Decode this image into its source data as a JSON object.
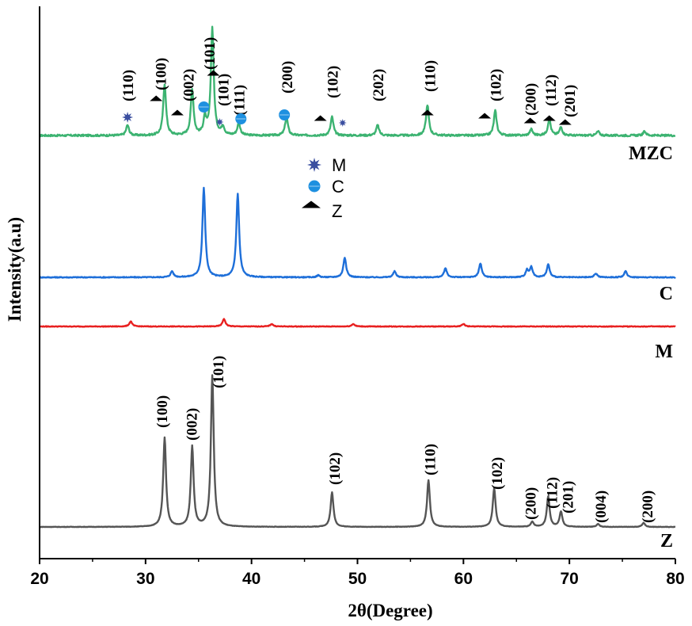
{
  "chart_data": {
    "type": "line",
    "xlabel": "2θ(Degree)",
    "ylabel": "Intensity(a.u)",
    "xlim": [
      20,
      80
    ],
    "x_ticks": [
      "20",
      "30",
      "40",
      "50",
      "60",
      "70",
      "80"
    ],
    "grid": false,
    "legend": {
      "placement": "center",
      "entries": [
        {
          "symbol": "star",
          "label": "M",
          "color": "#3B4FA0"
        },
        {
          "symbol": "circle",
          "label": "C",
          "color": "#1E90E0"
        },
        {
          "symbol": "triangle",
          "label": "Z",
          "color": "#000000"
        }
      ]
    },
    "series": [
      {
        "name": "MZC",
        "color": "#3CB371",
        "baseline": 0.0,
        "noise": 0.9,
        "peaks": [
          [
            28.3,
            5
          ],
          [
            31.8,
            25
          ],
          [
            34.4,
            22
          ],
          [
            35.6,
            8
          ],
          [
            36.3,
            52
          ],
          [
            37.3,
            4
          ],
          [
            38.8,
            6
          ],
          [
            43.3,
            9
          ],
          [
            47.6,
            9
          ],
          [
            51.9,
            5
          ],
          [
            56.6,
            15
          ],
          [
            63.0,
            12
          ],
          [
            66.4,
            3
          ],
          [
            68.1,
            8
          ],
          [
            69.2,
            4
          ],
          [
            72.7,
            2
          ],
          [
            77.1,
            2
          ]
        ]
      },
      {
        "name": "C",
        "color": "#1E6FD9",
        "baseline": 0.0,
        "noise": 0.9,
        "peaks": [
          [
            32.5,
            6
          ],
          [
            35.5,
            90
          ],
          [
            38.7,
            84
          ],
          [
            46.3,
            2
          ],
          [
            48.8,
            20
          ],
          [
            53.5,
            6
          ],
          [
            58.3,
            9
          ],
          [
            61.6,
            14
          ],
          [
            66.0,
            7
          ],
          [
            66.4,
            10
          ],
          [
            68.0,
            13
          ],
          [
            72.5,
            4
          ],
          [
            75.3,
            6
          ]
        ]
      },
      {
        "name": "M",
        "color": "#E82020",
        "baseline": 0.0,
        "noise": 0.5,
        "peaks": [
          [
            28.6,
            4
          ],
          [
            37.4,
            6
          ],
          [
            41.9,
            2
          ],
          [
            49.6,
            2
          ],
          [
            60.0,
            2
          ]
        ]
      },
      {
        "name": "Z",
        "color": "#555555",
        "baseline": 0.0,
        "noise": 0.4,
        "peaks": [
          [
            31.8,
            88
          ],
          [
            34.4,
            79
          ],
          [
            36.3,
            149
          ],
          [
            47.6,
            34
          ],
          [
            56.7,
            46
          ],
          [
            62.9,
            38
          ],
          [
            66.5,
            5
          ],
          [
            68.0,
            30
          ],
          [
            69.2,
            15
          ],
          [
            72.7,
            3
          ],
          [
            77.0,
            4
          ]
        ]
      }
    ],
    "series_labels": [
      "MZC",
      "C",
      "M",
      "Z"
    ],
    "peak_labels": {
      "MZC": [
        {
          "text": "(110)",
          "x": 28.3
        },
        {
          "text": "(100)",
          "x": 31.4
        },
        {
          "text": "(002)",
          "x": 34.0
        },
        {
          "text": "(101)",
          "x": 36.0
        },
        {
          "text": "(101)",
          "x": 37.3
        },
        {
          "text": "(111)",
          "x": 38.8
        },
        {
          "text": "(200)",
          "x": 43.3
        },
        {
          "text": "(102)",
          "x": 47.6
        },
        {
          "text": "(202)",
          "x": 51.9
        },
        {
          "text": "(110)",
          "x": 56.8
        },
        {
          "text": "(102)",
          "x": 63.0
        },
        {
          "text": "(200)",
          "x": 66.3
        },
        {
          "text": "(112)",
          "x": 68.2
        },
        {
          "text": "(201)",
          "x": 70.0
        }
      ],
      "Z": [
        {
          "text": "(100)",
          "x": 31.5
        },
        {
          "text": "(002)",
          "x": 34.3
        },
        {
          "text": "(101)",
          "x": 36.8
        },
        {
          "text": "(102)",
          "x": 47.8
        },
        {
          "text": "(110)",
          "x": 56.8
        },
        {
          "text": "(102)",
          "x": 63.1
        },
        {
          "text": "(200)",
          "x": 66.3
        },
        {
          "text": "(112)",
          "x": 68.3
        },
        {
          "text": "(201)",
          "x": 69.8
        },
        {
          "text": "(004)",
          "x": 72.9
        },
        {
          "text": "(200)",
          "x": 77.3
        }
      ]
    },
    "phase_markers": [
      {
        "phase": "M",
        "x": 28.3
      },
      {
        "phase": "Z",
        "x": 31.0
      },
      {
        "phase": "Z",
        "x": 33.0
      },
      {
        "phase": "C",
        "x": 35.5
      },
      {
        "phase": "Z",
        "x": 36.4
      },
      {
        "phase": "M",
        "x": 37.0
      },
      {
        "phase": "C",
        "x": 39.0
      },
      {
        "phase": "C",
        "x": 43.1
      },
      {
        "phase": "Z",
        "x": 46.5
      },
      {
        "phase": "M",
        "x": 48.6
      },
      {
        "phase": "Z",
        "x": 56.6
      },
      {
        "phase": "Z",
        "x": 62.0
      },
      {
        "phase": "Z",
        "x": 66.3
      },
      {
        "phase": "Z",
        "x": 68.1
      },
      {
        "phase": "Z",
        "x": 69.6
      }
    ]
  }
}
